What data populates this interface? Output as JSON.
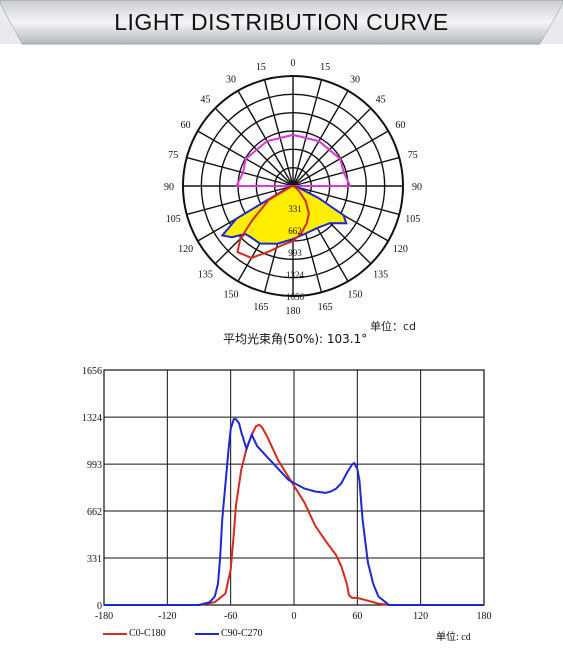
{
  "header": {
    "title": "LIGHT DISTRIBUTION CURVE"
  },
  "colors": {
    "c0": "#d62a1e",
    "c90": "#1a2ad0",
    "c_extra": "#d93ad6",
    "fill": "#ffee00"
  },
  "chart_data": [
    {
      "type": "polar",
      "angle_labels_left": [
        "180",
        "165",
        "150",
        "135",
        "120",
        "105",
        "90",
        "75",
        "60",
        "45",
        "30",
        "15",
        "0"
      ],
      "angle_labels_right": [
        "180",
        "165",
        "150",
        "135",
        "120",
        "105",
        "90",
        "75",
        "60",
        "45",
        "30",
        "15",
        "0"
      ],
      "radial_labels": [
        "331",
        "662",
        "993",
        "1324",
        "1656"
      ],
      "series": [
        {
          "name": "C0-C180",
          "points": [
            [
              -90,
              0
            ],
            [
              -75,
              20
            ],
            [
              -60,
              420
            ],
            [
              -50,
              800
            ],
            [
              -45,
              1120
            ],
            [
              -40,
              1300
            ],
            [
              -30,
              1250
            ],
            [
              -20,
              1050
            ],
            [
              -10,
              900
            ],
            [
              0,
              830
            ],
            [
              10,
              720
            ],
            [
              20,
              600
            ],
            [
              30,
              480
            ],
            [
              40,
              300
            ],
            [
              50,
              120
            ],
            [
              60,
              40
            ],
            [
              75,
              10
            ],
            [
              90,
              0
            ]
          ]
        },
        {
          "name": "C90-C270",
          "points": [
            [
              -90,
              0
            ],
            [
              -75,
              60
            ],
            [
              -60,
              980
            ],
            [
              -55,
              1300
            ],
            [
              -50,
              1200
            ],
            [
              -45,
              1020
            ],
            [
              -40,
              1000
            ],
            [
              -30,
              1000
            ],
            [
              -15,
              900
            ],
            [
              0,
              800
            ],
            [
              15,
              740
            ],
            [
              30,
              730
            ],
            [
              45,
              790
            ],
            [
              55,
              980
            ],
            [
              60,
              880
            ],
            [
              65,
              420
            ],
            [
              75,
              80
            ],
            [
              90,
              0
            ]
          ]
        },
        {
          "name": "",
          "points": [
            [
              -180,
              770
            ],
            [
              -150,
              780
            ],
            [
              -120,
              820
            ],
            [
              -105,
              780
            ],
            [
              -90,
              850
            ],
            [
              90,
              860
            ],
            [
              105,
              790
            ],
            [
              120,
              820
            ],
            [
              150,
              780
            ],
            [
              180,
              770
            ]
          ]
        }
      ]
    },
    {
      "type": "line",
      "xlim": [
        -180,
        180
      ],
      "ylim": [
        0,
        1656
      ],
      "x_ticks": [
        "-180",
        "-120",
        "-60",
        "0",
        "60",
        "120",
        "180"
      ],
      "y_ticks": [
        "0",
        "331",
        "662",
        "993",
        "1324",
        "1656"
      ],
      "series": [
        {
          "name": "C0-C180",
          "x": [
            -180,
            -90,
            -75,
            -65,
            -60,
            -57,
            -55,
            -50,
            -45,
            -40,
            -36,
            -33,
            -30,
            -25,
            -20,
            -15,
            -10,
            -5,
            0,
            10,
            20,
            30,
            40,
            45,
            50,
            52,
            55,
            60,
            70,
            80,
            90,
            180
          ],
          "y": [
            0,
            0,
            20,
            80,
            250,
            500,
            700,
            950,
            1100,
            1200,
            1260,
            1270,
            1250,
            1180,
            1100,
            1020,
            960,
            900,
            840,
            720,
            560,
            450,
            350,
            270,
            150,
            70,
            50,
            50,
            30,
            10,
            0,
            0
          ]
        },
        {
          "name": "C90-C270",
          "x": [
            -180,
            -90,
            -80,
            -75,
            -72,
            -70,
            -68,
            -65,
            -62,
            -60,
            -57,
            -55,
            -52,
            -50,
            -45,
            -40,
            -35,
            -30,
            -25,
            -20,
            -15,
            -10,
            -5,
            0,
            10,
            20,
            30,
            35,
            40,
            45,
            50,
            55,
            57,
            60,
            62,
            65,
            70,
            75,
            80,
            90,
            180
          ],
          "y": [
            0,
            0,
            20,
            60,
            150,
            330,
            600,
            850,
            1100,
            1240,
            1310,
            1310,
            1280,
            1220,
            1100,
            1200,
            1120,
            1080,
            1040,
            1000,
            960,
            920,
            880,
            860,
            820,
            800,
            790,
            800,
            820,
            860,
            930,
            990,
            1000,
            960,
            880,
            600,
            300,
            150,
            60,
            0,
            0
          ]
        }
      ],
      "unit": "单位: cd"
    }
  ],
  "polar_unit": "单位：cd",
  "beam_angle": "平均光束角(50%): 103.1°"
}
